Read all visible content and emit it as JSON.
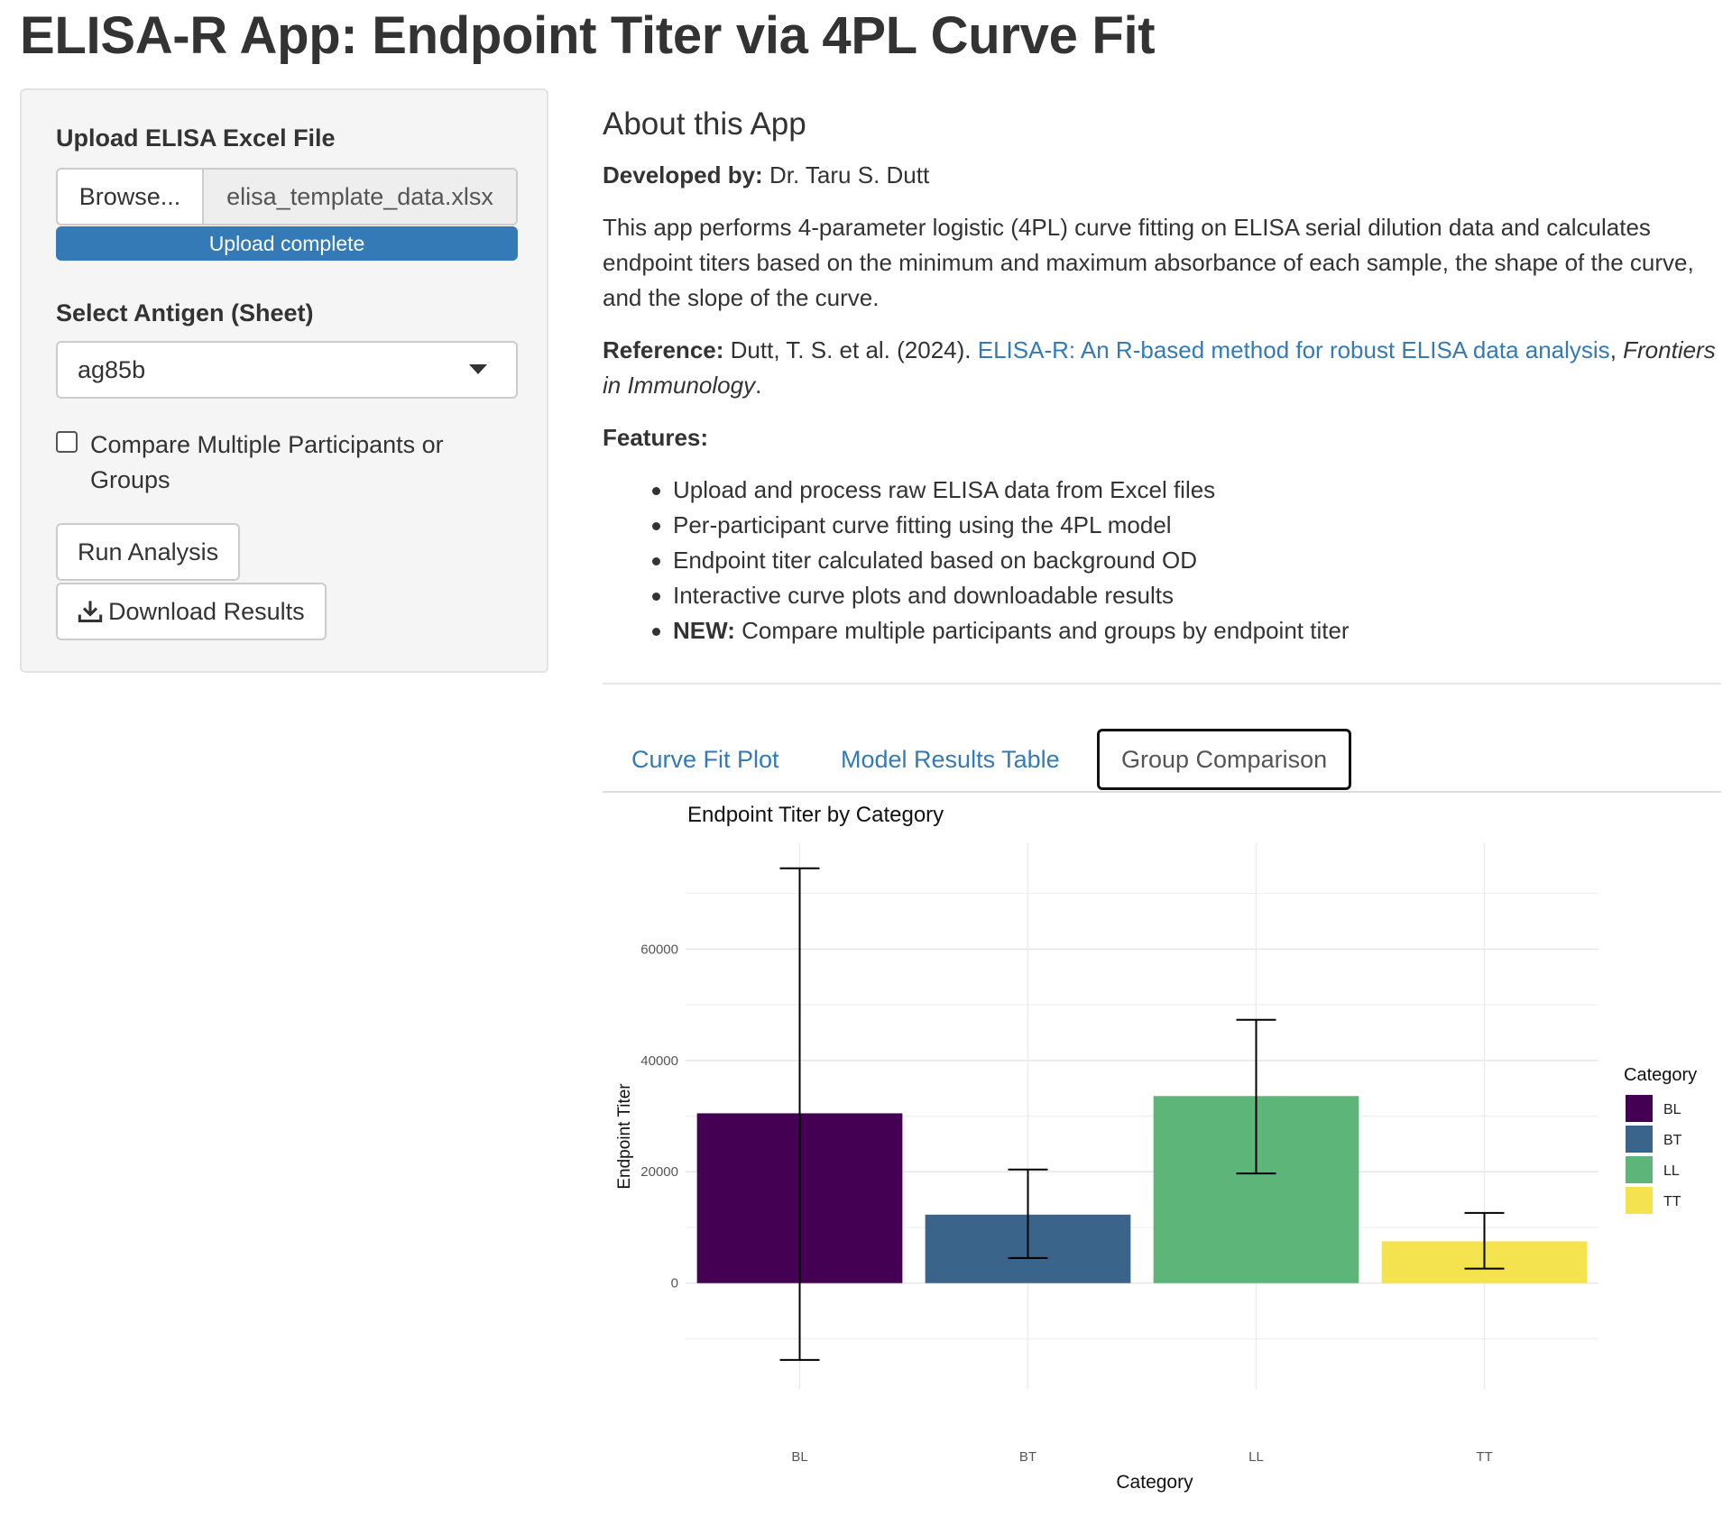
{
  "header": {
    "title": "ELISA-R App: Endpoint Titer via 4PL Curve Fit"
  },
  "sidebar": {
    "upload_label": "Upload ELISA Excel File",
    "browse_label": "Browse...",
    "file_name": "elisa_template_data.xlsx",
    "upload_status": "Upload complete",
    "upload_progress_percent": 100,
    "antigen_label": "Select Antigen (Sheet)",
    "antigen_value": "ag85b",
    "compare_label": "Compare Multiple Participants or Groups",
    "compare_checked": false,
    "run_label": "Run Analysis",
    "download_label": "Download Results"
  },
  "about": {
    "title": "About this App",
    "developed_by_label": "Developed by:",
    "developer": "Dr. Taru S. Dutt",
    "description": "This app performs 4-parameter logistic (4PL) curve fitting on ELISA serial dilution data and calculates endpoint titers based on the minimum and maximum absorbance of each sample, the shape of the curve, and the slope of the curve.",
    "reference_label": "Reference:",
    "reference_authors": "Dutt, T. S. et al. (2024).",
    "reference_link": "ELISA-R: An R-based method for robust ELISA data analysis",
    "reference_journal": "Frontiers in Immunology",
    "features_label": "Features:",
    "features": [
      "Upload and process raw ELISA data from Excel files",
      "Per-participant curve fitting using the 4PL model",
      "Endpoint titer calculated based on background OD",
      "Interactive curve plots and downloadable results"
    ],
    "feature_new_label": "NEW:",
    "feature_new_text": "Compare multiple participants and groups by endpoint titer"
  },
  "tabs": [
    {
      "label": "Curve Fit Plot"
    },
    {
      "label": "Model Results Table"
    },
    {
      "label": "Group Comparison"
    }
  ],
  "active_tab": "Group Comparison",
  "colors": {
    "link": "#337ab7",
    "progress": "#337ab7"
  },
  "chart_data": {
    "type": "bar",
    "title": "Endpoint Titer by Category",
    "xlabel": "Category",
    "ylabel": "Endpoint Titer",
    "categories": [
      "BL",
      "BT",
      "LL",
      "TT"
    ],
    "values": [
      30500,
      12300,
      33600,
      7500
    ],
    "error_low": [
      -13800,
      4500,
      19700,
      2600
    ],
    "error_high": [
      74500,
      20400,
      47300,
      12600
    ],
    "colors": [
      "#440154",
      "#3b648a",
      "#5db57a",
      "#f5e24f"
    ],
    "yticks": [
      0,
      20000,
      40000,
      60000
    ],
    "ylim": [
      -19000,
      79000
    ],
    "grid": true,
    "legend": {
      "title": "Category",
      "position": "right",
      "entries": [
        "BL",
        "BT",
        "LL",
        "TT"
      ]
    }
  }
}
